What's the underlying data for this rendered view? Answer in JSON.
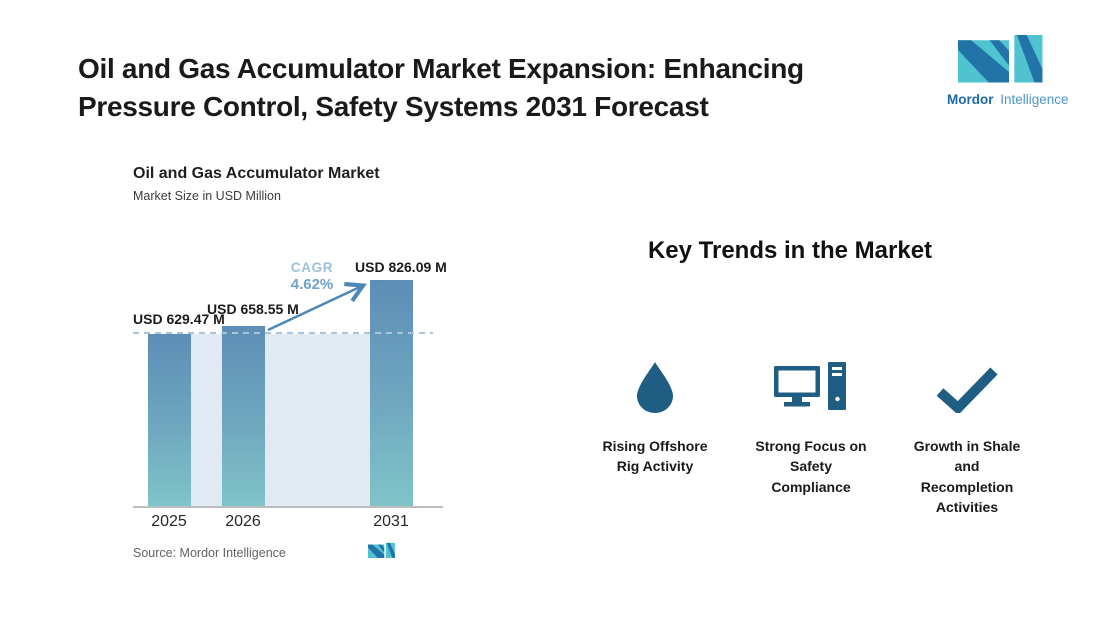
{
  "page": {
    "title": "Oil and Gas Accumulator Market Expansion: Enhancing\nPressure Control, Safety Systems 2031 Forecast"
  },
  "brand": {
    "name_bold": "Mordor",
    "name_light": "Intelligence",
    "teal": "#4fc3cf",
    "blue": "#2173a8"
  },
  "chart": {
    "source_label": "Source:  Mordor Intelligence"
  },
  "chart_data": {
    "type": "bar",
    "title": "Oil and Gas Accumulator Market",
    "subtitle": "Market Size in USD Million",
    "categories": [
      "2025",
      "2026",
      "2031"
    ],
    "values": [
      629.47,
      658.55,
      826.09
    ],
    "bar_labels": [
      "USD 629.47 M",
      "USD 658.55 M",
      "USD 826.09 M"
    ],
    "unit": "USD Million",
    "cagr_label": "CAGR",
    "cagr_value": "4.62%",
    "ylim": [
      0,
      900
    ],
    "grid": false,
    "legend": false,
    "annotations": "dashed reference line at 2025 value; growth arrow from 2026 bar to 2031 bar",
    "bar_gradient_top": "#5d8eb7",
    "bar_gradient_bottom": "#80c4c8",
    "background_band_color": "#e1e9f2",
    "dashed_line_color": "#a6c5dc",
    "arrow_color": "#4e88b6"
  },
  "trends": {
    "heading": "Key Trends in the Market",
    "icon_color": "#1f5d82",
    "items": [
      {
        "icon": "droplet-icon",
        "label": "Rising Offshore\nRig Activity"
      },
      {
        "icon": "desktop-computer-icon",
        "label": "Strong Focus on\nSafety\nCompliance"
      },
      {
        "icon": "checkmark-icon",
        "label": "Growth in Shale\nand\nRecompletion\nActivities"
      }
    ]
  }
}
